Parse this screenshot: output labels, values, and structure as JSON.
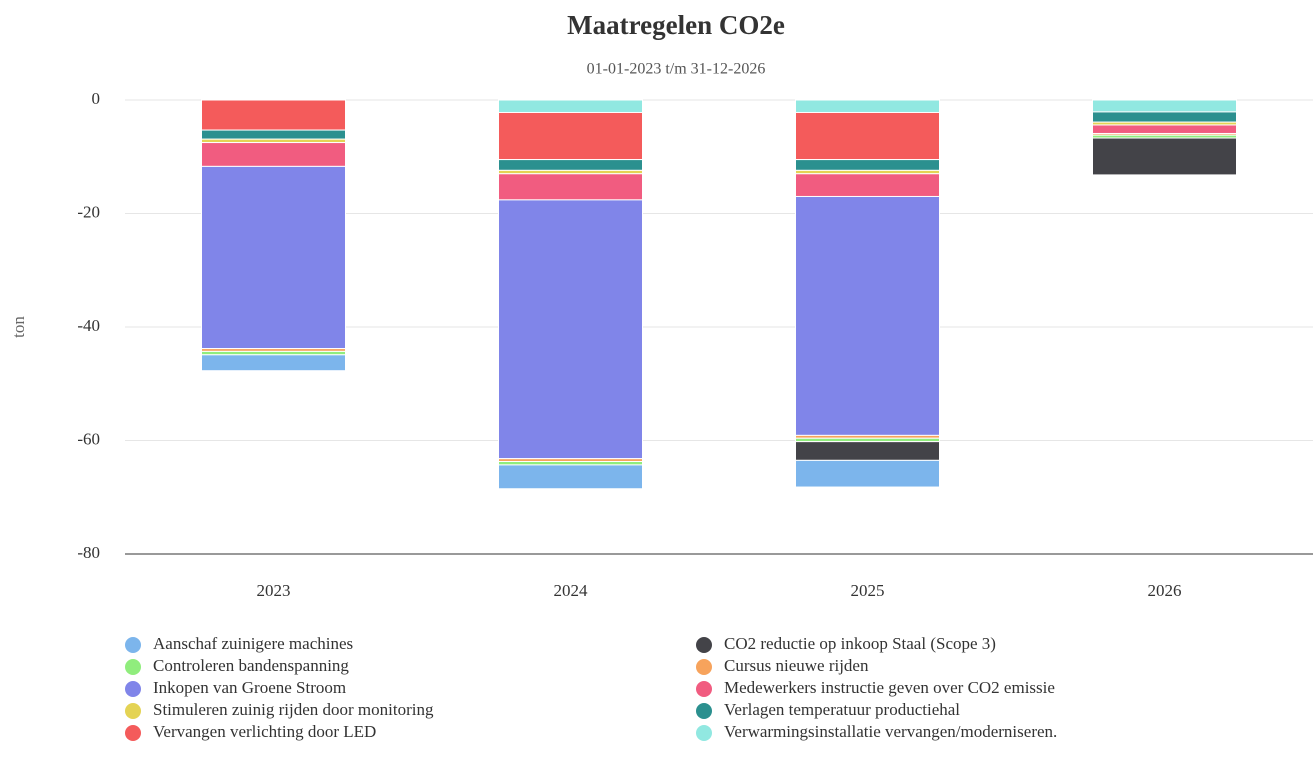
{
  "chart_data": {
    "type": "stacked_bar",
    "title": "Maatregelen CO2e",
    "subtitle": "01-01-2023 t/m 31-12-2026",
    "y_label": "ton",
    "categories": [
      "2023",
      "2024",
      "2025",
      "2026"
    ],
    "ylim": [
      -80,
      0
    ],
    "yticks": [
      0,
      -20,
      -40,
      -60,
      -80
    ],
    "grid": true,
    "legend": "bottom",
    "series": [
      {
        "name": "Aanschaf zuinigere machines",
        "color": "#7cb5ec",
        "values": [
          -2.8,
          -4.2,
          -4.7,
          0
        ]
      },
      {
        "name": "CO2 reductie op inkoop Staal (Scope 3)",
        "color": "#434348",
        "values": [
          0,
          0,
          -3.3,
          -6.5
        ]
      },
      {
        "name": "Controleren bandenspanning",
        "color": "#90ed7d",
        "values": [
          -0.6,
          -0.6,
          -0.6,
          -0.5
        ]
      },
      {
        "name": "Cursus nieuwe rijden",
        "color": "#f7a35c",
        "values": [
          -0.5,
          -0.5,
          -0.5,
          -0.3
        ]
      },
      {
        "name": "Inkopen van Groene Stroom",
        "color": "#8085e9",
        "values": [
          -32.1,
          -45.6,
          -42.1,
          0
        ]
      },
      {
        "name": "Medewerkers instructie geven over CO2 emissie",
        "color": "#f15c80",
        "values": [
          -4.2,
          -4.6,
          -4.0,
          -1.5
        ]
      },
      {
        "name": "Stimuleren zuinig rijden door monitoring",
        "color": "#e4d354",
        "values": [
          -0.6,
          -0.6,
          -0.6,
          -0.5
        ]
      },
      {
        "name": "Verlagen temperatuur productiehal",
        "color": "#2b908f",
        "values": [
          -1.6,
          -1.9,
          -1.9,
          -1.8
        ]
      },
      {
        "name": "Vervangen verlichting door LED",
        "color": "#f45b5b",
        "values": [
          -5.3,
          -8.3,
          -8.3,
          0
        ]
      },
      {
        "name": "Verwarmingsinstallatie vervangen/moderniseren.",
        "color": "#91e8e1",
        "values": [
          0,
          -2.2,
          -2.2,
          -2.1
        ]
      }
    ]
  }
}
